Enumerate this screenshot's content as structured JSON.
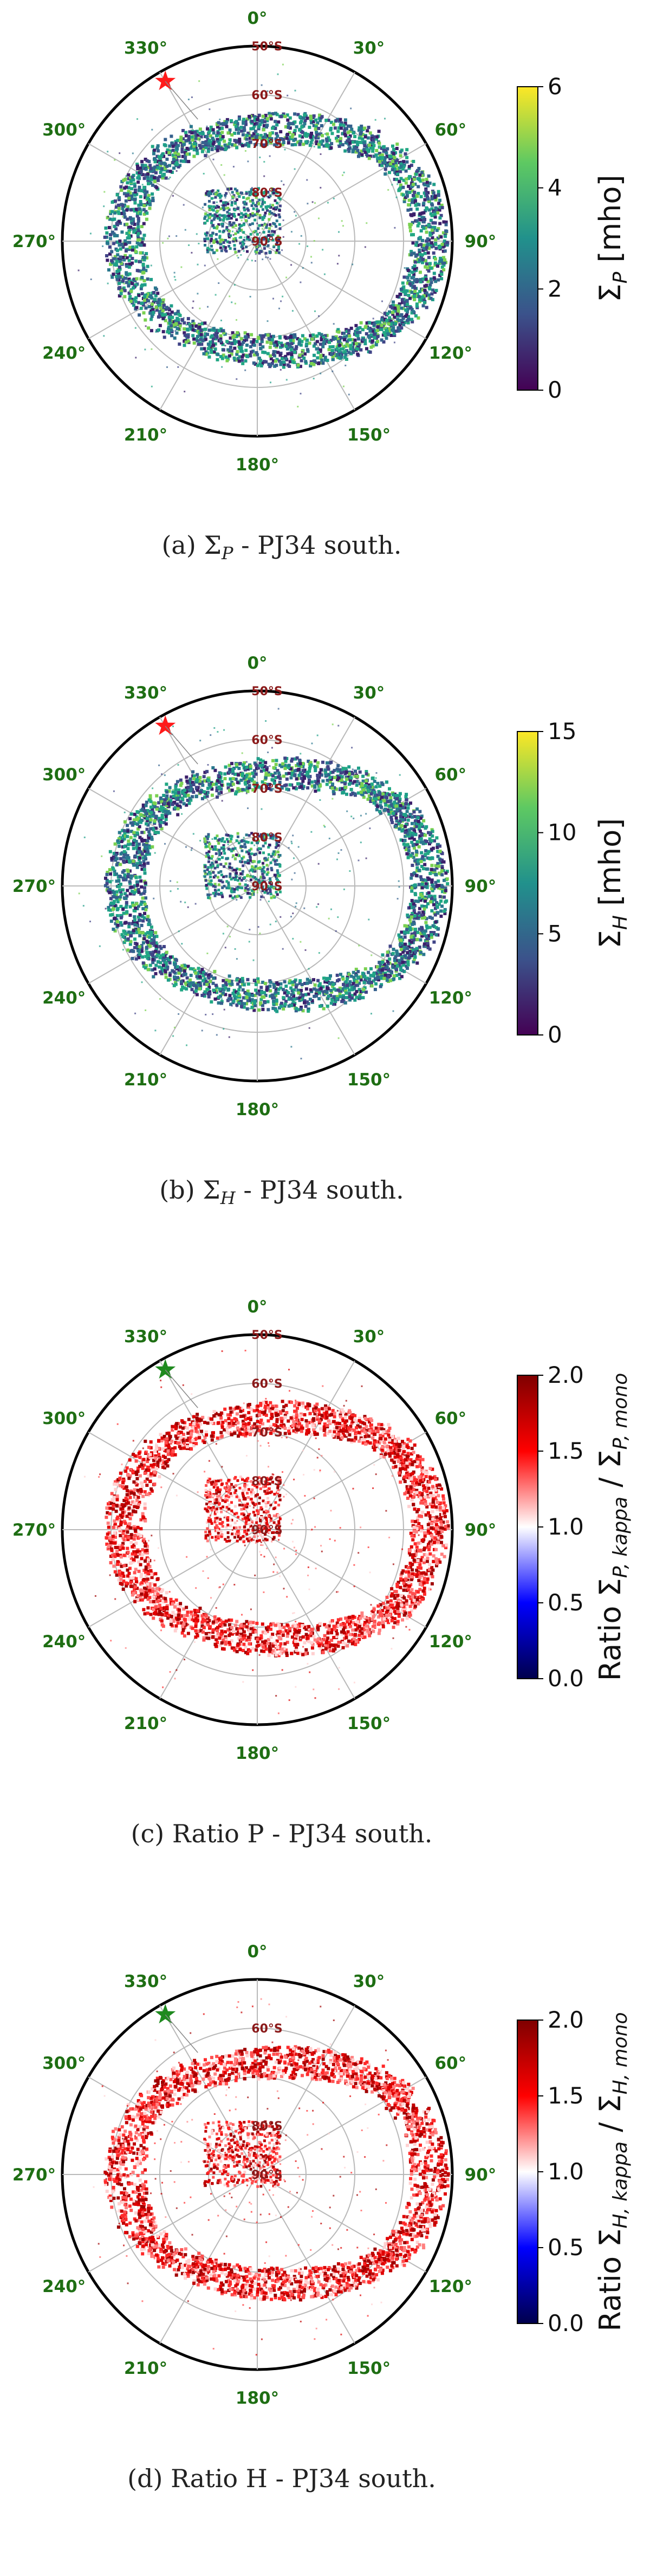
{
  "chart_data": [
    {
      "type": "heatmap",
      "projection": "polar-south",
      "panel_label": "(a)",
      "caption_math": "Σ",
      "caption_sub": "P",
      "caption_rest": " - PJ34 south.",
      "colorbar_label": "Σ_P [mho]",
      "colorbar_label_main": "Σ",
      "colorbar_label_sub": "P",
      "colorbar_label_unit": " [mho]",
      "colormap": "viridis",
      "colorbar_range": [
        0,
        6
      ],
      "colorbar_ticks": [
        "0",
        "2",
        "4",
        "6"
      ],
      "lon_labels": [
        "0°",
        "30°",
        "60°",
        "90°",
        "120°",
        "150°",
        "180°",
        "210°",
        "240°",
        "270°",
        "300°",
        "330°"
      ],
      "lat_labels": [
        "50°S",
        "60°S",
        "70°S",
        "80°S",
        "90°S"
      ],
      "marker": {
        "symbol": "star",
        "color": "#ff1a1a"
      }
    },
    {
      "type": "heatmap",
      "projection": "polar-south",
      "panel_label": "(b)",
      "caption_math": "Σ",
      "caption_sub": "H",
      "caption_rest": " - PJ34 south.",
      "colorbar_label": "Σ_H [mho]",
      "colorbar_label_main": "Σ",
      "colorbar_label_sub": "H",
      "colorbar_label_unit": " [mho]",
      "colormap": "viridis",
      "colorbar_range": [
        0,
        15
      ],
      "colorbar_ticks": [
        "0",
        "5",
        "10",
        "15"
      ],
      "lon_labels": [
        "0°",
        "30°",
        "60°",
        "90°",
        "120°",
        "150°",
        "180°",
        "210°",
        "240°",
        "270°",
        "300°",
        "330°"
      ],
      "lat_labels": [
        "50°S",
        "60°S",
        "70°S",
        "80°S",
        "90°S"
      ],
      "marker": {
        "symbol": "star",
        "color": "#ff1a1a"
      }
    },
    {
      "type": "heatmap",
      "projection": "polar-south",
      "panel_label": "(c)",
      "caption_math": "",
      "caption_sub": "",
      "caption_rest": "Ratio P - PJ34 south.",
      "colorbar_label": "Ratio Σ_P,kappa / Σ_P,mono",
      "colorbar_label_main": "Ratio Σ",
      "colorbar_label_sub": "P, kappa",
      "colorbar_label_unit": " / Σ",
      "colorbar_label_sub2": "P, mono",
      "colormap": "seismic",
      "colorbar_range": [
        0.0,
        2.0
      ],
      "colorbar_ticks": [
        "0.0",
        "0.5",
        "1.0",
        "1.5",
        "2.0"
      ],
      "lon_labels": [
        "0°",
        "30°",
        "60°",
        "90°",
        "120°",
        "150°",
        "180°",
        "210°",
        "240°",
        "270°",
        "300°",
        "330°"
      ],
      "lat_labels": [
        "50°S",
        "60°S",
        "70°S",
        "80°S",
        "90°S"
      ],
      "marker": {
        "symbol": "star",
        "color": "#1f8a1f"
      }
    },
    {
      "type": "heatmap",
      "projection": "polar-south",
      "panel_label": "(d)",
      "caption_math": "",
      "caption_sub": "",
      "caption_rest": "Ratio H - PJ34 south.",
      "colorbar_label": "Ratio Σ_H,kappa / Σ_H,mono",
      "colorbar_label_main": "Ratio Σ",
      "colorbar_label_sub": "H, kappa",
      "colorbar_label_unit": " / Σ",
      "colorbar_label_sub2": "H, mono",
      "colormap": "seismic",
      "colorbar_range": [
        0.0,
        2.0
      ],
      "colorbar_ticks": [
        "0.0",
        "0.5",
        "1.0",
        "1.5",
        "2.0"
      ],
      "lon_labels": [
        "0°",
        "30°",
        "60°",
        "90°",
        "120°",
        "150°",
        "180°",
        "210°",
        "240°",
        "270°",
        "300°",
        "330°"
      ],
      "lat_labels": [
        "60°S",
        "80°S",
        "90°S"
      ],
      "marker": {
        "symbol": "star",
        "color": "#1f8a1f"
      }
    }
  ]
}
